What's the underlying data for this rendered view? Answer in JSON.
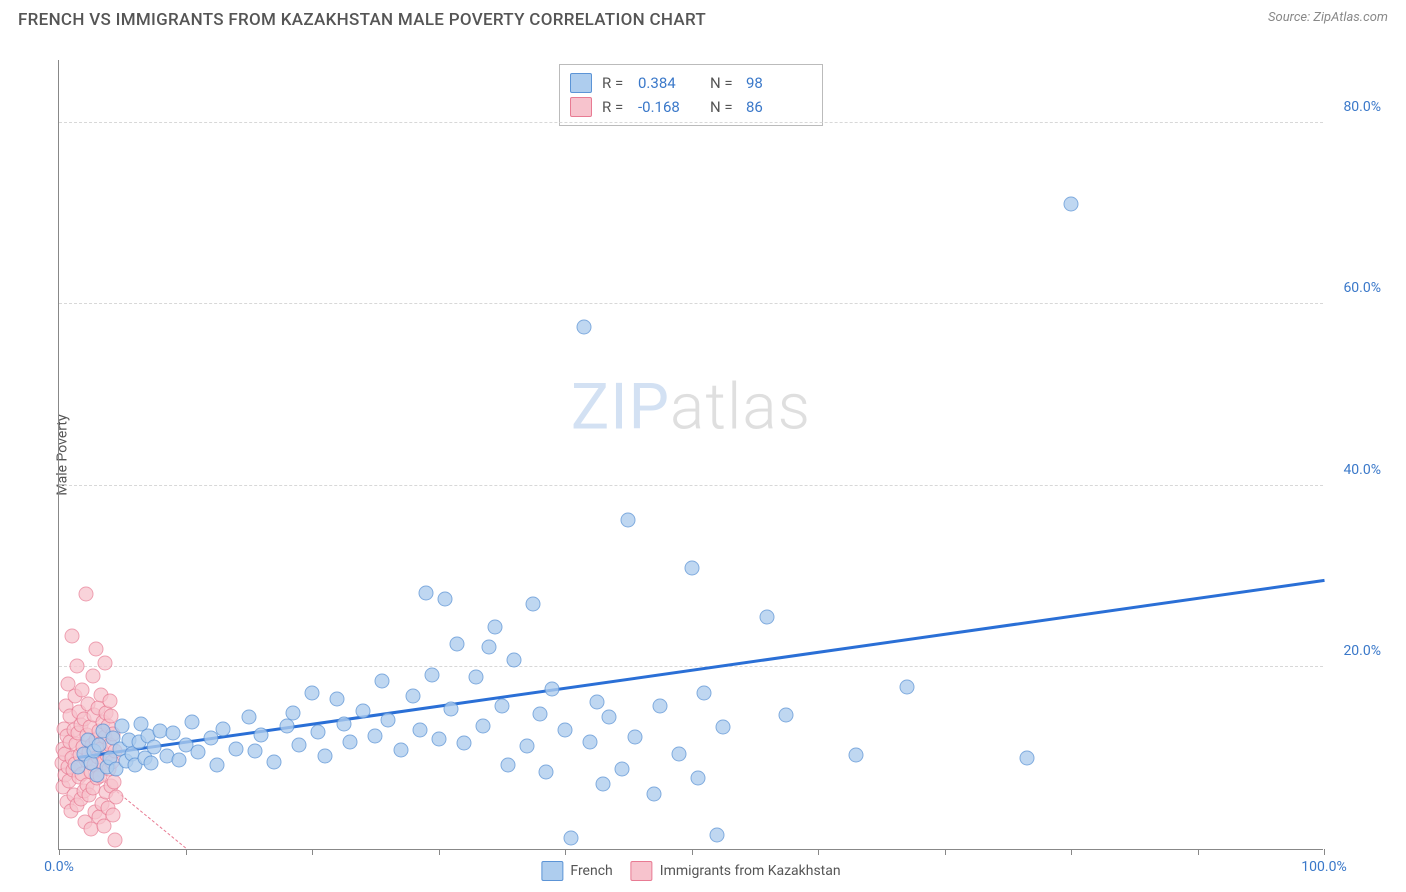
{
  "header": {
    "title": "FRENCH VS IMMIGRANTS FROM KAZAKHSTAN MALE POVERTY CORRELATION CHART",
    "source": "Source: ZipAtlas.com"
  },
  "chart": {
    "type": "scatter",
    "ylabel": "Male Poverty",
    "watermark_a": "ZIP",
    "watermark_b": "atlas",
    "background_color": "#ffffff",
    "grid_color": "#d8d8d8",
    "axis_color": "#888888",
    "xlim": [
      0,
      100
    ],
    "ylim": [
      0,
      87
    ],
    "xtick_positions": [
      0,
      10,
      20,
      30,
      40,
      50,
      60,
      70,
      80,
      90,
      100
    ],
    "xtick_labels_shown": {
      "0": "0.0%",
      "100": "100.0%"
    },
    "xtick_label_color": "#3a78c9",
    "ytick_positions": [
      20,
      40,
      60,
      80
    ],
    "ytick_labels": {
      "20": "20.0%",
      "40": "40.0%",
      "60": "60.0%",
      "80": "80.0%"
    },
    "ytick_label_color": "#3a78c9",
    "series": {
      "french": {
        "label": "French",
        "marker_fill": "#aecdee",
        "marker_stroke": "#5c94d6",
        "marker_opacity": 0.78,
        "marker_radius": 7.5,
        "r_value": "0.384",
        "n_value": "98",
        "trend": {
          "x1": 1.5,
          "y1": 10,
          "x2": 100,
          "y2": 29.5,
          "color": "#2a6fd6",
          "width": 2.5,
          "style": "solid"
        },
        "points": [
          [
            1.5,
            9
          ],
          [
            2,
            10.5
          ],
          [
            2.3,
            12
          ],
          [
            2.5,
            9.5
          ],
          [
            2.8,
            10.8
          ],
          [
            3,
            8.2
          ],
          [
            3.2,
            11.5
          ],
          [
            3.5,
            13
          ],
          [
            3.8,
            9
          ],
          [
            4,
            10
          ],
          [
            4.3,
            12.2
          ],
          [
            4.5,
            8.8
          ],
          [
            4.8,
            11
          ],
          [
            5,
            13.5
          ],
          [
            5.3,
            9.7
          ],
          [
            5.5,
            12
          ],
          [
            5.8,
            10.5
          ],
          [
            6,
            9.2
          ],
          [
            6.3,
            11.8
          ],
          [
            6.5,
            13.8
          ],
          [
            6.8,
            10
          ],
          [
            7,
            12.5
          ],
          [
            7.3,
            9.5
          ],
          [
            7.5,
            11.2
          ],
          [
            8,
            13
          ],
          [
            8.5,
            10.2
          ],
          [
            9,
            12.8
          ],
          [
            9.5,
            9.8
          ],
          [
            10,
            11.5
          ],
          [
            10.5,
            14
          ],
          [
            11,
            10.7
          ],
          [
            12,
            12.2
          ],
          [
            12.5,
            9.3
          ],
          [
            13,
            13.2
          ],
          [
            14,
            11
          ],
          [
            15,
            14.5
          ],
          [
            15.5,
            10.8
          ],
          [
            16,
            12.6
          ],
          [
            17,
            9.6
          ],
          [
            18,
            13.5
          ],
          [
            18.5,
            15
          ],
          [
            19,
            11.4
          ],
          [
            20,
            17.2
          ],
          [
            20.5,
            12.9
          ],
          [
            21,
            10.2
          ],
          [
            22,
            16.5
          ],
          [
            22.5,
            13.8
          ],
          [
            23,
            11.8
          ],
          [
            24,
            15.2
          ],
          [
            25,
            12.4
          ],
          [
            25.5,
            18.5
          ],
          [
            26,
            14.2
          ],
          [
            27,
            10.9
          ],
          [
            28,
            16.8
          ],
          [
            28.5,
            13.1
          ],
          [
            29,
            28.2
          ],
          [
            29.5,
            19.2
          ],
          [
            30,
            12.1
          ],
          [
            30.5,
            27.5
          ],
          [
            31,
            15.4
          ],
          [
            31.5,
            22.6
          ],
          [
            32,
            11.7
          ],
          [
            33,
            18.9
          ],
          [
            33.5,
            13.6
          ],
          [
            34,
            22.2
          ],
          [
            34.5,
            24.5
          ],
          [
            35,
            15.8
          ],
          [
            35.5,
            9.2
          ],
          [
            36,
            20.8
          ],
          [
            37,
            11.3
          ],
          [
            37.5,
            27
          ],
          [
            38,
            14.9
          ],
          [
            38.5,
            8.5
          ],
          [
            39,
            17.6
          ],
          [
            40,
            13.1
          ],
          [
            40.5,
            1.2
          ],
          [
            41.5,
            57.5
          ],
          [
            42,
            11.8
          ],
          [
            42.5,
            16.2
          ],
          [
            43,
            7.2
          ],
          [
            43.5,
            14.5
          ],
          [
            44.5,
            8.8
          ],
          [
            45,
            36.2
          ],
          [
            45.5,
            12.3
          ],
          [
            47,
            6.1
          ],
          [
            47.5,
            15.7
          ],
          [
            49,
            10.5
          ],
          [
            50,
            31
          ],
          [
            50.5,
            7.8
          ],
          [
            51,
            17.2
          ],
          [
            52,
            1.5
          ],
          [
            52.5,
            13.4
          ],
          [
            56,
            25.5
          ],
          [
            57.5,
            14.8
          ],
          [
            63,
            10.4
          ],
          [
            67,
            17.8
          ],
          [
            76.5,
            10.0
          ],
          [
            80,
            71
          ]
        ]
      },
      "kazakhstan": {
        "label": "Immigrants from Kazakhstan",
        "marker_fill": "#f7c3cd",
        "marker_stroke": "#e87b93",
        "marker_opacity": 0.72,
        "marker_radius": 7.5,
        "r_value": "-0.168",
        "n_value": "86",
        "trend": {
          "x1": 0.2,
          "y1": 11.2,
          "x2": 10,
          "y2": 0,
          "color": "#e87b93",
          "width": 1.5,
          "style": "dashed"
        },
        "points": [
          [
            0.2,
            9.5
          ],
          [
            0.3,
            11
          ],
          [
            0.35,
            6.8
          ],
          [
            0.4,
            13.2
          ],
          [
            0.45,
            8.1
          ],
          [
            0.5,
            10.5
          ],
          [
            0.55,
            15.8
          ],
          [
            0.6,
            5.2
          ],
          [
            0.65,
            12.4
          ],
          [
            0.7,
            9.0
          ],
          [
            0.75,
            18.2
          ],
          [
            0.8,
            7.5
          ],
          [
            0.85,
            11.8
          ],
          [
            0.9,
            14.6
          ],
          [
            0.95,
            4.2
          ],
          [
            1.0,
            10.0
          ],
          [
            1.05,
            23.5
          ],
          [
            1.1,
            8.7
          ],
          [
            1.15,
            13.1
          ],
          [
            1.2,
            6.0
          ],
          [
            1.25,
            16.9
          ],
          [
            1.3,
            9.4
          ],
          [
            1.35,
            11.6
          ],
          [
            1.4,
            20.2
          ],
          [
            1.45,
            4.8
          ],
          [
            1.5,
            12.8
          ],
          [
            1.55,
            7.9
          ],
          [
            1.6,
            15.1
          ],
          [
            1.65,
            10.3
          ],
          [
            1.7,
            5.5
          ],
          [
            1.75,
            13.7
          ],
          [
            1.8,
            8.3
          ],
          [
            1.85,
            17.5
          ],
          [
            1.9,
            11.2
          ],
          [
            1.95,
            6.4
          ],
          [
            2.0,
            14.3
          ],
          [
            2.05,
            3.0
          ],
          [
            2.1,
            28.1
          ],
          [
            2.15,
            9.8
          ],
          [
            2.2,
            12.6
          ],
          [
            2.25,
            7.1
          ],
          [
            2.3,
            16.0
          ],
          [
            2.35,
            10.7
          ],
          [
            2.4,
            5.9
          ],
          [
            2.45,
            13.4
          ],
          [
            2.5,
            8.5
          ],
          [
            2.55,
            2.2
          ],
          [
            2.6,
            11.5
          ],
          [
            2.65,
            19.0
          ],
          [
            2.7,
            6.7
          ],
          [
            2.75,
            14.8
          ],
          [
            2.8,
            9.2
          ],
          [
            2.85,
            4.1
          ],
          [
            2.9,
            12.0
          ],
          [
            2.95,
            22.0
          ],
          [
            3.0,
            7.8
          ],
          [
            3.05,
            15.5
          ],
          [
            3.1,
            10.1
          ],
          [
            3.15,
            3.5
          ],
          [
            3.2,
            13.0
          ],
          [
            3.25,
            8.0
          ],
          [
            3.3,
            17.0
          ],
          [
            3.35,
            11.0
          ],
          [
            3.4,
            5.0
          ],
          [
            3.45,
            14.0
          ],
          [
            3.5,
            9.5
          ],
          [
            3.55,
            2.5
          ],
          [
            3.6,
            12.3
          ],
          [
            3.65,
            20.5
          ],
          [
            3.7,
            6.3
          ],
          [
            3.75,
            15.0
          ],
          [
            3.8,
            10.4
          ],
          [
            3.85,
            4.5
          ],
          [
            3.9,
            13.6
          ],
          [
            3.95,
            8.8
          ],
          [
            4.0,
            16.3
          ],
          [
            4.05,
            11.4
          ],
          [
            4.1,
            6.9
          ],
          [
            4.15,
            14.7
          ],
          [
            4.2,
            9.6
          ],
          [
            4.25,
            3.8
          ],
          [
            4.3,
            12.7
          ],
          [
            4.35,
            7.4
          ],
          [
            4.4,
            1.0
          ],
          [
            4.45,
            10.8
          ],
          [
            4.5,
            5.7
          ]
        ]
      }
    },
    "r_legend": {
      "r_label": "R =",
      "n_label": "N =",
      "value_color": "#3a78c9",
      "label_color": "#555555",
      "text_fontsize": 15
    },
    "bottom_legend_fontsize": 14
  }
}
